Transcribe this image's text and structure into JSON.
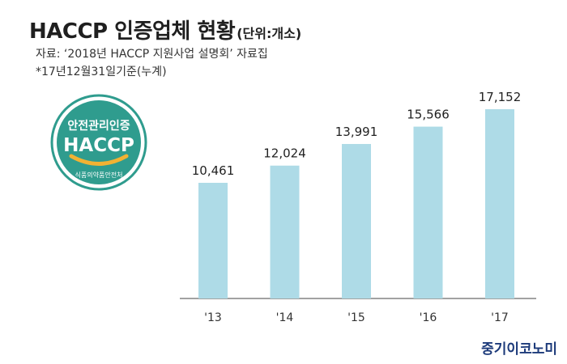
{
  "header": {
    "title": "HACCP 인증업체 현황",
    "unit": "(단위:개소)",
    "source": "자료: ‘2018년 HACCP 지원사업 설명회’ 자료집",
    "note": "*17년12월31일기준(누계)"
  },
  "logo": {
    "top_text": "안전관리인증",
    "main_text": "HACCP",
    "bottom_text": "식품의약품안전처",
    "colors": {
      "green": "#2f9c8e",
      "arc": "#f2b233"
    }
  },
  "chart_data": {
    "type": "bar",
    "categories": [
      "'13",
      "'14",
      "'15",
      "'16",
      "'17"
    ],
    "values": [
      10461,
      12024,
      13991,
      15566,
      17152
    ],
    "value_labels": [
      "10,461",
      "12,024",
      "13,991",
      "15,566",
      "17,152"
    ],
    "title": "HACCP 인증업체 현황",
    "xlabel": "",
    "ylabel": "",
    "grid": false,
    "bar_color": "#aedbe7"
  },
  "watermark": "중기이코노미"
}
